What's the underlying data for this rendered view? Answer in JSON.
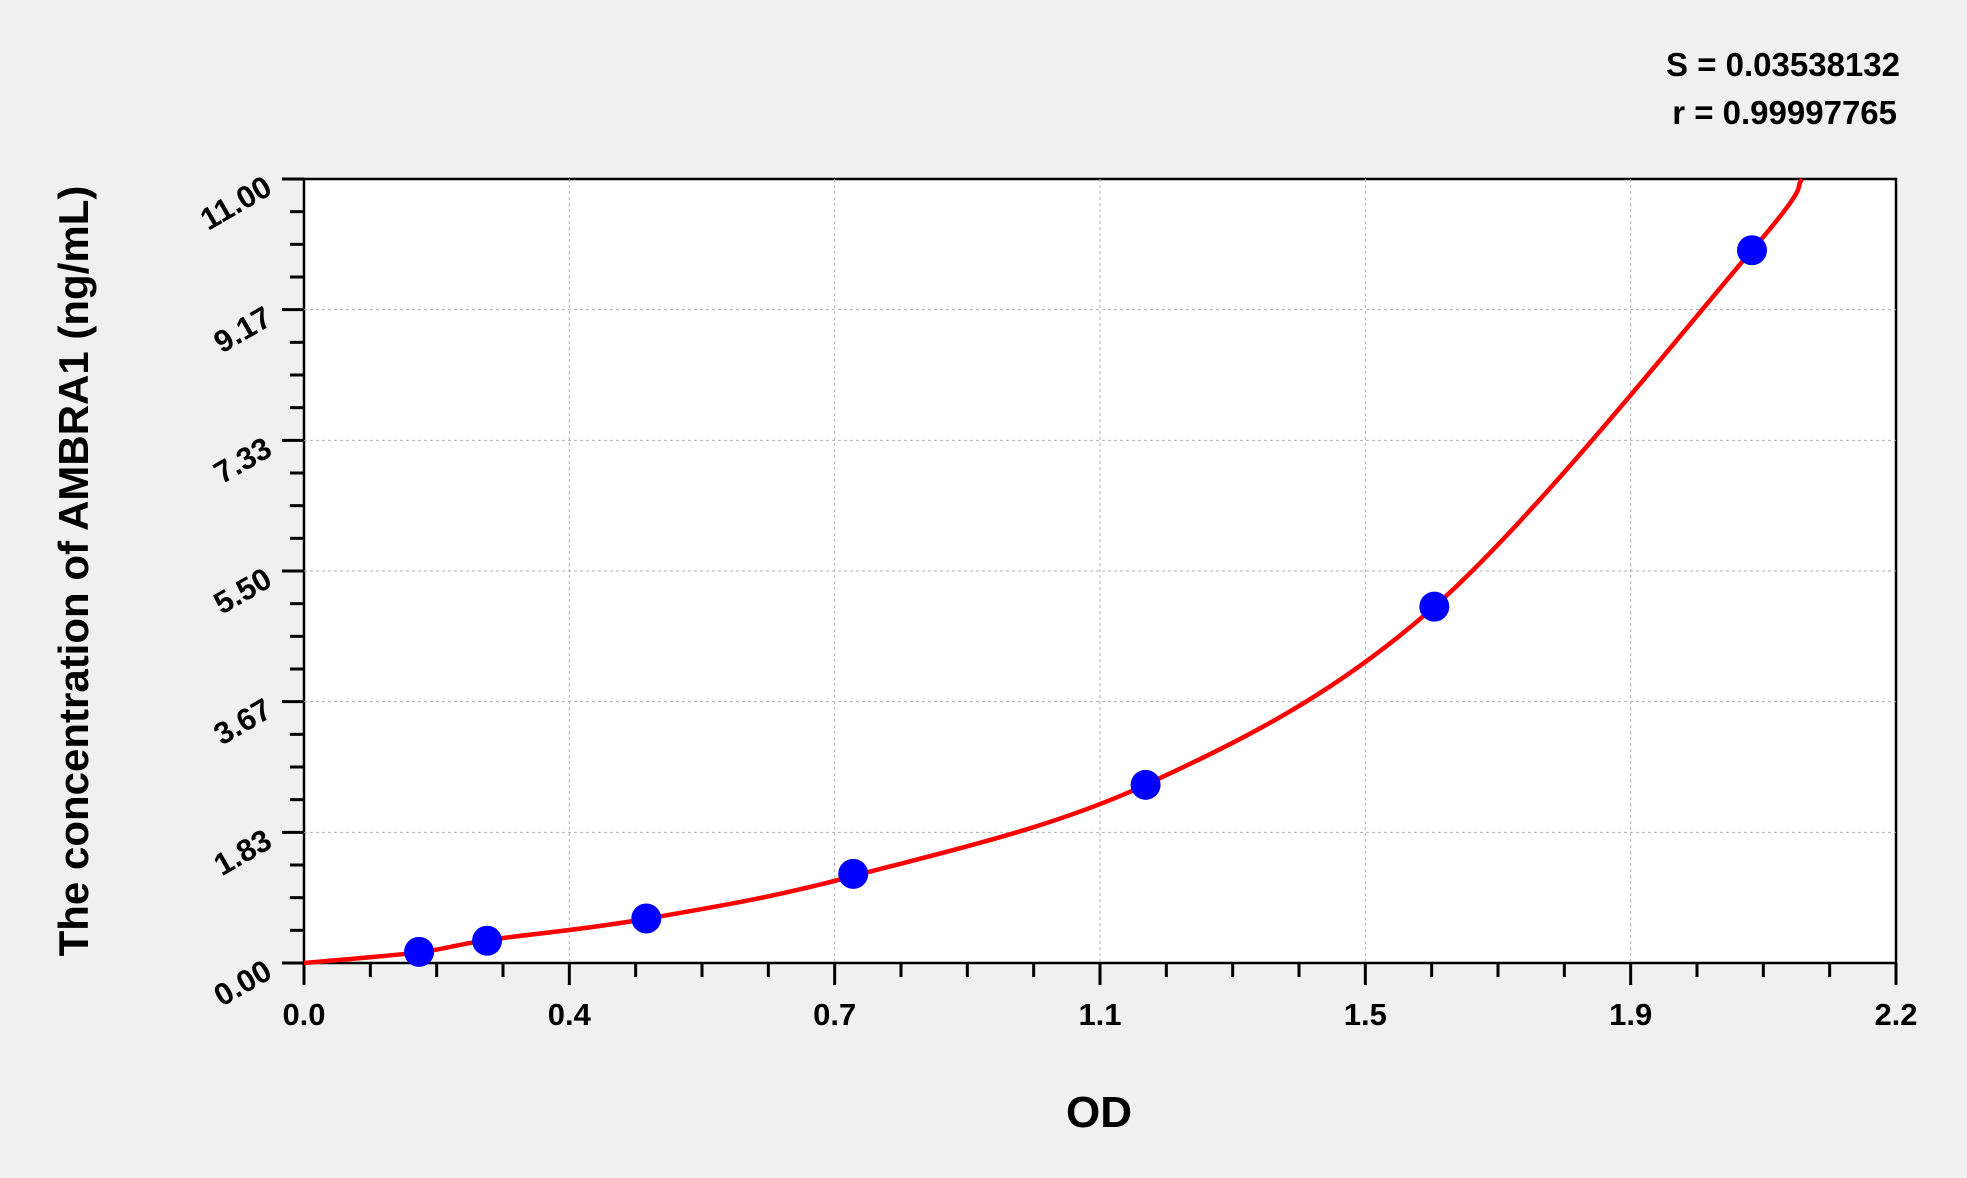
{
  "chart_data": {
    "type": "scatter",
    "title": "",
    "xlabel": "OD",
    "ylabel": "The concentration of  AMBRA1 (ng/mL)",
    "xlim": [
      0.0,
      2.2
    ],
    "ylim": [
      0.0,
      11.0
    ],
    "x_ticks": [
      "0.0",
      "0.4",
      "0.7",
      "1.1",
      "1.5",
      "1.9",
      "2.2"
    ],
    "y_ticks": [
      "0.00",
      "1.83",
      "3.67",
      "5.50",
      "7.33",
      "9.17",
      "11.00"
    ],
    "grid": true,
    "annotations": [
      "S = 0.03538132",
      "r = 0.99997765"
    ],
    "series": [
      {
        "type": "scatter",
        "color": "#0000ff",
        "points": [
          [
            0.159,
            0.156
          ],
          [
            0.253,
            0.312
          ],
          [
            0.473,
            0.625
          ],
          [
            0.759,
            1.25
          ],
          [
            1.163,
            2.5
          ],
          [
            1.562,
            5.0
          ],
          [
            2.001,
            10.0
          ]
        ]
      },
      {
        "type": "line",
        "color": "#ff0000",
        "points": [
          [
            0.0,
            0.0
          ],
          [
            0.159,
            0.15
          ],
          [
            0.253,
            0.32
          ],
          [
            0.473,
            0.62
          ],
          [
            0.759,
            1.22
          ],
          [
            1.163,
            2.5
          ],
          [
            1.562,
            5.0
          ],
          [
            2.001,
            10.0
          ],
          [
            2.07,
            11.0
          ]
        ]
      }
    ]
  }
}
